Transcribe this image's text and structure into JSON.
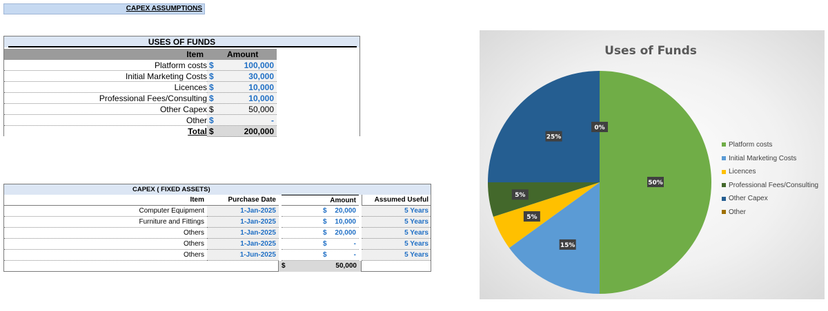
{
  "header": {
    "title": "CAPEX ASSUMPTIONS"
  },
  "uses_of_funds": {
    "title": "USES OF FUNDS",
    "col_item": "Item",
    "col_amount": "Amount",
    "rows": [
      {
        "item": "Platform costs",
        "currency": "$",
        "amount": "100,000",
        "style": "blue"
      },
      {
        "item": "Initial Marketing Costs",
        "currency": "$",
        "amount": "30,000",
        "style": "blue"
      },
      {
        "item": "Licences",
        "currency": "$",
        "amount": "10,000",
        "style": "blue"
      },
      {
        "item": "Professional Fees/Consulting",
        "currency": "$",
        "amount": "10,000",
        "style": "blue"
      },
      {
        "item": "Other Capex",
        "currency": "$",
        "amount": "50,000",
        "style": "dark"
      },
      {
        "item": "Other",
        "currency": "$",
        "amount": "-",
        "style": "blue"
      }
    ],
    "total_label": "Total",
    "total_currency": "$",
    "total_amount": "200,000"
  },
  "capex": {
    "title": "CAPEX ( FIXED ASSETS)",
    "headers": {
      "item": "Item",
      "date": "Purchase Date",
      "amount": "Amount",
      "life": "Assumed Useful Life"
    },
    "rows": [
      {
        "item": "Computer Equipment",
        "date": "1-Jan-2025",
        "currency": "$",
        "amount": "20,000",
        "life": "5  Years"
      },
      {
        "item": "Furniture and Fittings",
        "date": "1-Jan-2025",
        "currency": "$",
        "amount": "10,000",
        "life": "5  Years"
      },
      {
        "item": "Others",
        "date": "1-Jan-2025",
        "currency": "$",
        "amount": "20,000",
        "life": "5  Years"
      },
      {
        "item": "Others",
        "date": "1-Jan-2025",
        "currency": "$",
        "amount": "-",
        "life": "5  Years"
      },
      {
        "item": "Others",
        "date": "1-Jun-2025",
        "currency": "$",
        "amount": "-",
        "life": "5  Years"
      }
    ],
    "total_currency": "$",
    "total_amount": "50,000"
  },
  "chart_data": {
    "type": "pie",
    "title": "Uses of Funds",
    "legend_position": "right",
    "categories": [
      "Platform costs",
      "Initial Marketing Costs",
      "Licences",
      "Professional Fees/Consulting",
      "Other Capex",
      "Other"
    ],
    "values": [
      100000,
      30000,
      10000,
      10000,
      50000,
      0
    ],
    "labels": [
      "50%",
      "15%",
      "5%",
      "5%",
      "25%",
      "0%"
    ],
    "colors": [
      "#70ad47",
      "#5b9bd5",
      "#ffc000",
      "#43682b",
      "#255e91",
      "#9e7000"
    ]
  }
}
